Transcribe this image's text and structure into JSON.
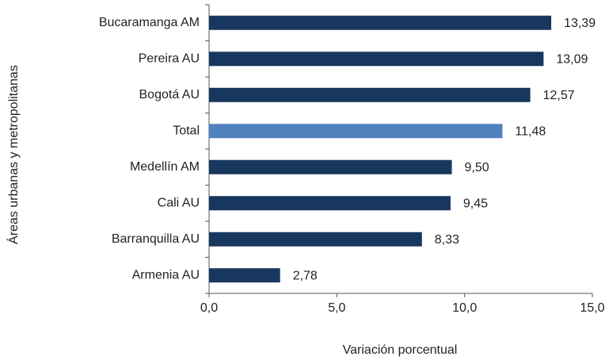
{
  "chart_data": {
    "type": "barh",
    "xlabel": "Variación porcentual",
    "ylabel": "Áreas urbanas y metropolitanas",
    "categories": [
      "Bucaramanga AM",
      "Pereira AU",
      "Bogotá AU",
      "Total",
      "Medellín AM",
      "Cali AU",
      "Barranquilla AU",
      "Armenia AU"
    ],
    "values": [
      13.39,
      13.09,
      12.57,
      11.48,
      9.5,
      9.45,
      8.33,
      2.78
    ],
    "value_labels": [
      "13,39",
      "13,09",
      "12,57",
      "11,48",
      "9,50",
      "9,45",
      "8,33",
      "2,78"
    ],
    "colors": [
      "#17375e",
      "#17375e",
      "#17375e",
      "#4f81bd",
      "#17375e",
      "#17375e",
      "#17375e",
      "#17375e"
    ],
    "xlim": [
      0,
      15
    ],
    "xticks": [
      {
        "value": 0,
        "label": "0,0"
      },
      {
        "value": 5,
        "label": "5,0"
      },
      {
        "value": 10,
        "label": "10,0"
      },
      {
        "value": 15,
        "label": "15,0"
      }
    ],
    "grid": false
  }
}
